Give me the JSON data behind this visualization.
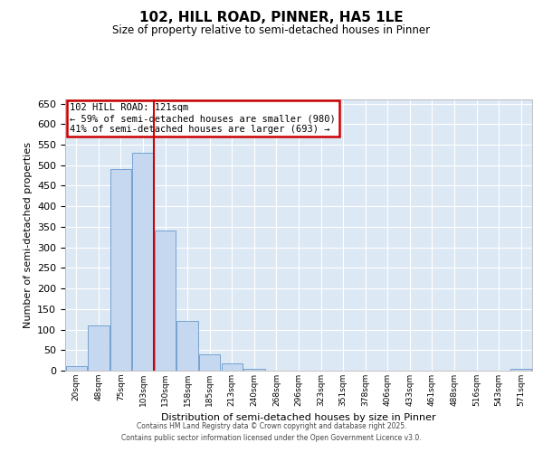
{
  "title": "102, HILL ROAD, PINNER, HA5 1LE",
  "subtitle": "Size of property relative to semi-detached houses in Pinner",
  "xlabel": "Distribution of semi-detached houses by size in Pinner",
  "ylabel": "Number of semi-detached properties",
  "bin_labels": [
    "20sqm",
    "48sqm",
    "75sqm",
    "103sqm",
    "130sqm",
    "158sqm",
    "185sqm",
    "213sqm",
    "240sqm",
    "268sqm",
    "296sqm",
    "323sqm",
    "351sqm",
    "378sqm",
    "406sqm",
    "433sqm",
    "461sqm",
    "488sqm",
    "516sqm",
    "543sqm",
    "571sqm"
  ],
  "bar_heights": [
    10,
    110,
    490,
    530,
    340,
    120,
    40,
    18,
    5,
    0,
    0,
    0,
    0,
    0,
    0,
    0,
    0,
    0,
    0,
    0,
    4
  ],
  "bar_color": "#c5d8f0",
  "bar_edge_color": "#6699cc",
  "red_line_index": 3.5,
  "annotation_title": "102 HILL ROAD: 121sqm",
  "annotation_line1": "← 59% of semi-detached houses are smaller (980)",
  "annotation_line2": "41% of semi-detached houses are larger (693) →",
  "annotation_box_color": "#cc0000",
  "ylim": [
    0,
    660
  ],
  "yticks": [
    0,
    50,
    100,
    150,
    200,
    250,
    300,
    350,
    400,
    450,
    500,
    550,
    600,
    650
  ],
  "grid_color": "#ffffff",
  "background_color": "#dde8f5",
  "footer_line1": "Contains HM Land Registry data © Crown copyright and database right 2025.",
  "footer_line2": "Contains public sector information licensed under the Open Government Licence v3.0."
}
